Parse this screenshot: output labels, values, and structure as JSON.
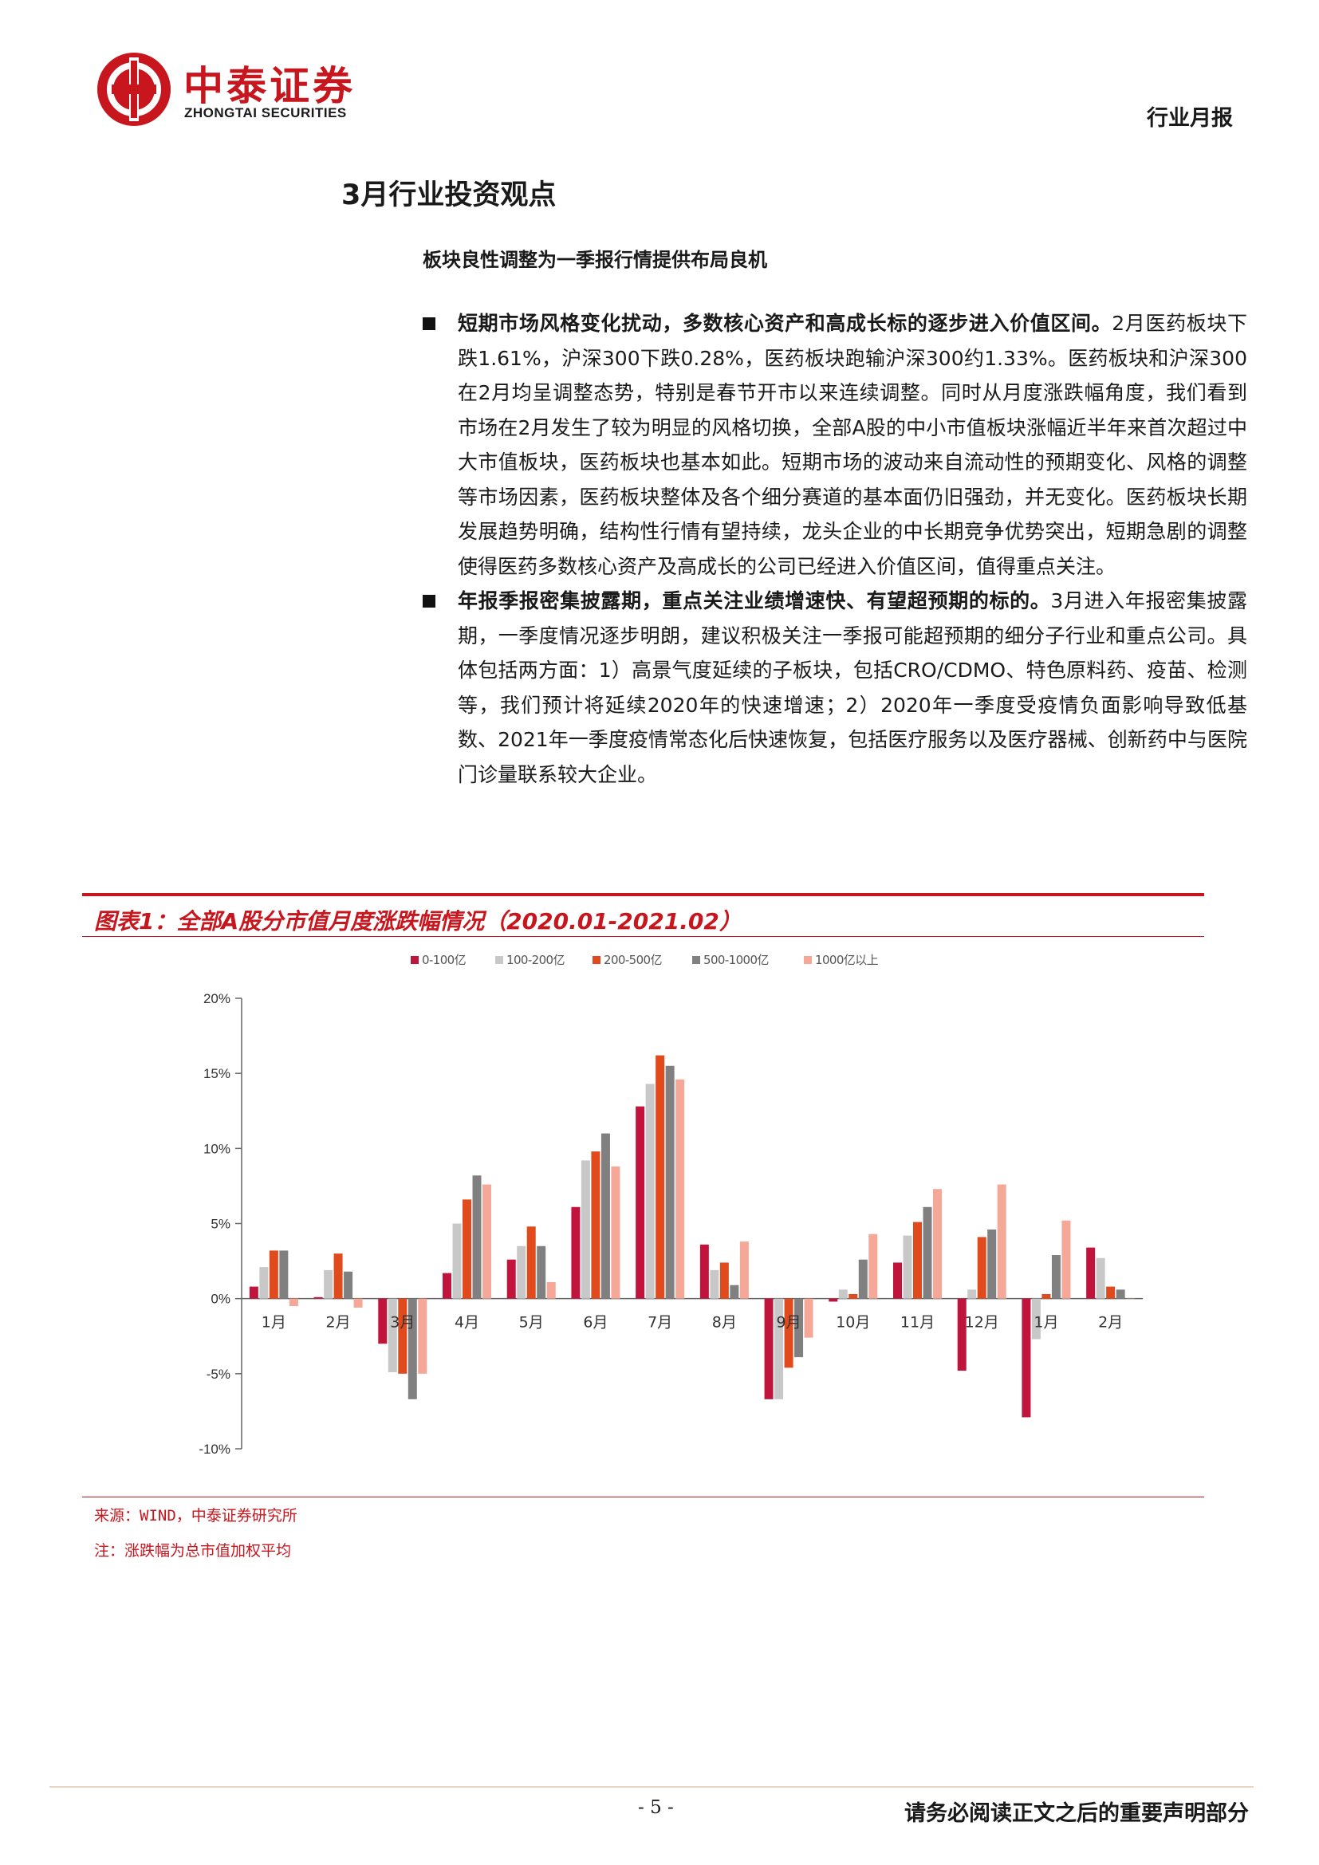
{
  "header": {
    "logo_cn": "中泰证券",
    "logo_en": "ZHONGTAI SECURITIES",
    "report_type": "行业月报"
  },
  "section": {
    "title": "3月行业投资观点",
    "subtitle": "板块良性调整为一季报行情提供布局良机"
  },
  "bullets": [
    {
      "head": "短期市场风格变化扰动，多数核心资产和高成长标的逐步进入价值区间。",
      "body": "2月医药板块下跌1.61%，沪深300下跌0.28%，医药板块跑输沪深300约1.33%。医药板块和沪深300在2月均呈调整态势，特别是春节开市以来连续调整。同时从月度涨跌幅角度，我们看到市场在2月发生了较为明显的风格切换，全部A股的中小市值板块涨幅近半年来首次超过中大市值板块，医药板块也基本如此。短期市场的波动来自流动性的预期变化、风格的调整等市场因素，医药板块整体及各个细分赛道的基本面仍旧强劲，并无变化。医药板块长期发展趋势明确，结构性行情有望持续，龙头企业的中长期竞争优势突出，短期急剧的调整使得医药多数核心资产及高成长的公司已经进入价值区间，值得重点关注。"
    },
    {
      "head": "年报季报密集披露期，重点关注业绩增速快、有望超预期的标的。",
      "body": "3月进入年报密集披露期，一季度情况逐步明朗，建议积极关注一季报可能超预期的细分子行业和重点公司。具体包括两方面：1）高景气度延续的子板块，包括CRO/CDMO、特色原料药、疫苗、检测等，我们预计将延续2020年的快速增速；2）2020年一季度受疫情负面影响导致低基数、2021年一季度疫情常态化后快速恢复，包括医疗服务以及医疗器械、创新药中与医院门诊量联系较大企业。"
    }
  ],
  "figure": {
    "title": "图表1：全部A股分市值月度涨跌幅情况（2020.01-2021.02）",
    "source": "来源：WIND，中泰证券研究所",
    "note": "注：涨跌幅为总市值加权平均"
  },
  "chart_data": {
    "type": "bar",
    "categories": [
      "1月",
      "2月",
      "3月",
      "4月",
      "5月",
      "6月",
      "7月",
      "8月",
      "9月",
      "10月",
      "11月",
      "12月",
      "1月",
      "2月"
    ],
    "series": [
      {
        "name": "0-100亿",
        "color": "#c0143c",
        "values": [
          0.8,
          0.1,
          -3.0,
          1.7,
          2.6,
          6.1,
          12.8,
          3.6,
          -6.7,
          -0.2,
          2.4,
          -4.8,
          -7.9,
          3.4
        ]
      },
      {
        "name": "100-200亿",
        "color": "#c8c8c8",
        "values": [
          2.1,
          1.9,
          -4.9,
          5.0,
          3.5,
          9.2,
          14.3,
          1.9,
          -6.7,
          0.6,
          4.2,
          0.6,
          -2.7,
          2.7
        ]
      },
      {
        "name": "200-500亿",
        "color": "#e04a1c",
        "values": [
          3.2,
          3.0,
          -5.0,
          6.6,
          4.8,
          9.8,
          16.2,
          2.4,
          -4.6,
          0.3,
          5.1,
          4.1,
          0.3,
          0.8
        ]
      },
      {
        "name": "500-1000亿",
        "color": "#808080",
        "values": [
          3.2,
          1.8,
          -6.7,
          8.2,
          3.5,
          11.0,
          15.5,
          0.9,
          -3.9,
          2.6,
          6.1,
          4.6,
          2.9,
          0.6
        ]
      },
      {
        "name": "1000亿以上",
        "color": "#f5a898",
        "values": [
          -0.5,
          -0.6,
          -5.0,
          7.6,
          1.1,
          8.8,
          14.6,
          3.8,
          -2.6,
          4.3,
          7.3,
          7.6,
          5.2,
          0.0
        ]
      }
    ],
    "ylim": [
      -10,
      20
    ],
    "yticks": [
      -10,
      -5,
      0,
      5,
      10,
      15,
      20
    ],
    "ytick_labels": [
      "-10%",
      "-5%",
      "0%",
      "5%",
      "10%",
      "15%",
      "20%"
    ],
    "legend_position": "top",
    "grid": false
  }
}
